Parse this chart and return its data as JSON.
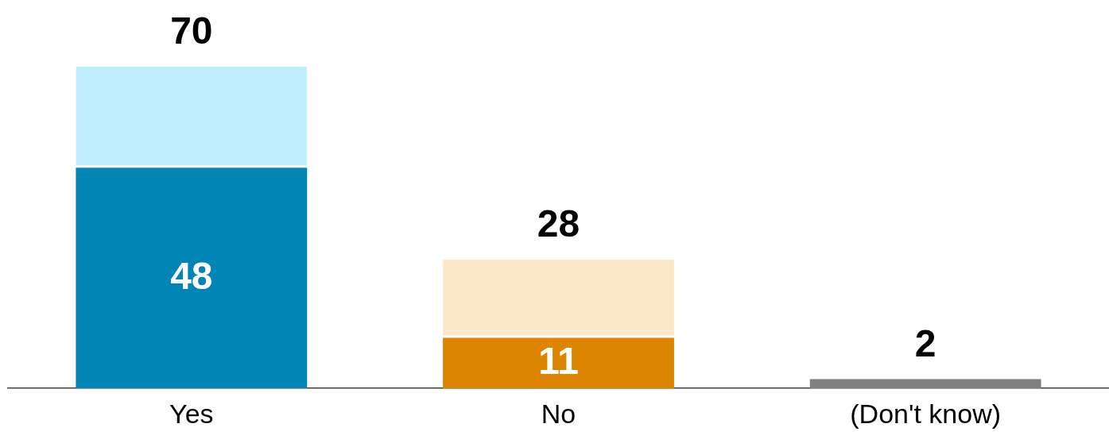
{
  "chart_data": {
    "type": "bar",
    "stacked": true,
    "categories": [
      "Yes",
      "No",
      "(Don't know)"
    ],
    "series": [
      {
        "colors": [
          "#0085b5",
          "#dd8500",
          "#808080"
        ],
        "values": [
          48,
          11,
          2
        ],
        "value_labels": [
          "48",
          "11",
          null
        ]
      },
      {
        "colors": [
          "#bfeeff",
          "#fde7c9",
          "#808080"
        ],
        "values": [
          22,
          17,
          null
        ]
      }
    ],
    "totals": [
      "70",
      "28",
      "2"
    ]
  }
}
